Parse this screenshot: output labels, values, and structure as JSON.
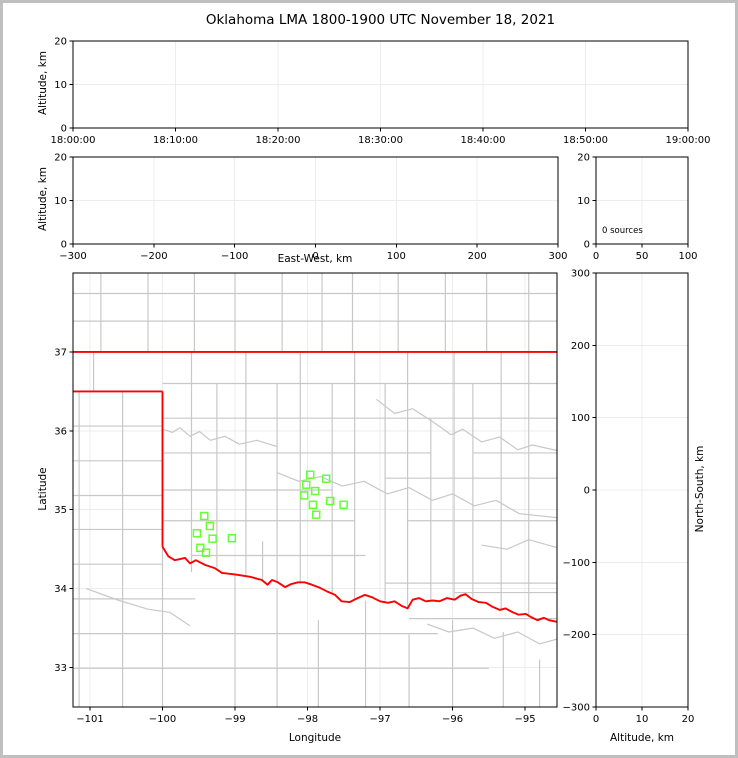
{
  "title": "Oklahoma LMA 1800-1900 UTC November 18, 2021",
  "colors": {
    "state_border": "#ff0000",
    "county_line": "#c8c8c8",
    "source_marker": "#66ff33",
    "gridline": "#ececec",
    "axis": "#000000",
    "frame_border": "#bfbfbf",
    "background": "#ffffff"
  },
  "panels": {
    "time_height": {
      "ylabel": "Altitude, km",
      "ylim": [
        0,
        20
      ],
      "xlim": [
        0,
        6
      ],
      "yticks": [
        [
          0,
          "0"
        ],
        [
          10,
          "10"
        ],
        [
          20,
          "20"
        ]
      ],
      "xticks": [
        [
          0,
          "18:00:00"
        ],
        [
          1,
          "18:10:00"
        ],
        [
          2,
          "18:20:00"
        ],
        [
          3,
          "18:30:00"
        ],
        [
          4,
          "18:40:00"
        ],
        [
          5,
          "18:50:00"
        ],
        [
          6,
          "19:00:00"
        ]
      ]
    },
    "ew_height": {
      "ylabel": "Altitude, km",
      "xlabel": "East-West, km",
      "ylim": [
        0,
        20
      ],
      "xlim": [
        -300,
        300
      ],
      "yticks": [
        [
          0,
          "0"
        ],
        [
          10,
          "10"
        ],
        [
          20,
          "20"
        ]
      ],
      "xticks": [
        [
          -300,
          "−300"
        ],
        [
          -200,
          "−200"
        ],
        [
          -100,
          "−100"
        ],
        [
          0,
          "0"
        ],
        [
          100,
          "100"
        ],
        [
          200,
          "200"
        ],
        [
          300,
          "300"
        ]
      ]
    },
    "histogram": {
      "annotation": "0 sources",
      "ylim": [
        0,
        20
      ],
      "xlim": [
        0,
        100
      ],
      "yticks": [
        [
          0,
          "0"
        ],
        [
          10,
          "10"
        ],
        [
          20,
          "20"
        ]
      ],
      "xticks": [
        [
          0,
          "0"
        ],
        [
          50,
          "50"
        ],
        [
          100,
          "100"
        ]
      ]
    },
    "map": {
      "ylabel": "Latitude",
      "xlabel": "Longitude",
      "ylim": [
        32.5,
        38.0
      ],
      "xlim": [
        -101.234,
        -94.56
      ],
      "yticks": [
        [
          33,
          "33"
        ],
        [
          34,
          "34"
        ],
        [
          35,
          "35"
        ],
        [
          36,
          "36"
        ],
        [
          37,
          "37"
        ]
      ],
      "xticks": [
        [
          -101,
          "−101"
        ],
        [
          -100,
          "−100"
        ],
        [
          -99,
          "−99"
        ],
        [
          -98,
          "−98"
        ],
        [
          -97,
          "−97"
        ],
        [
          -96,
          "−96"
        ],
        [
          -95,
          "−95"
        ]
      ]
    },
    "ns_height": {
      "ylabel": "North-South, km",
      "xlabel": "Altitude, km",
      "ylim": [
        -300,
        300
      ],
      "xlim": [
        0,
        20
      ],
      "yticks": [
        [
          -300,
          "−300"
        ],
        [
          -200,
          "−200"
        ],
        [
          -100,
          "−100"
        ],
        [
          0,
          "0"
        ],
        [
          100,
          "100"
        ],
        [
          200,
          "200"
        ],
        [
          300,
          "300"
        ]
      ],
      "xticks": [
        [
          0,
          "0"
        ],
        [
          10,
          "10"
        ],
        [
          20,
          "20"
        ]
      ]
    }
  },
  "chart_data": {
    "type": "scatter",
    "title": "Oklahoma LMA 1800-1900 UTC November 18, 2021",
    "source_count_label": "0 sources",
    "map_sources_lon_lat": [
      [
        -97.963,
        35.444
      ],
      [
        -97.742,
        35.393
      ],
      [
        -98.018,
        35.317
      ],
      [
        -97.894,
        35.237
      ],
      [
        -98.046,
        35.182
      ],
      [
        -97.687,
        35.11
      ],
      [
        -97.926,
        35.063
      ],
      [
        -97.503,
        35.063
      ],
      [
        -97.88,
        34.937
      ],
      [
        -99.424,
        34.92
      ],
      [
        -99.346,
        34.794
      ],
      [
        -99.525,
        34.701
      ],
      [
        -99.309,
        34.633
      ],
      [
        -99.043,
        34.638
      ],
      [
        -99.479,
        34.518
      ],
      [
        -99.4,
        34.455
      ]
    ],
    "state_border": {
      "north": [
        [
          -101.234,
          37.0
        ],
        [
          -94.56,
          37.0
        ]
      ],
      "panhandle_south": [
        [
          -101.234,
          36.5
        ],
        [
          -100.0,
          36.5
        ]
      ],
      "east_vertical": [
        [
          -100.0,
          36.5
        ],
        [
          -100.0,
          34.53
        ]
      ],
      "red_river": [
        [
          -100.0,
          34.53
        ],
        [
          -99.92,
          34.41
        ],
        [
          -99.83,
          34.36
        ],
        [
          -99.69,
          34.39
        ],
        [
          -99.62,
          34.32
        ],
        [
          -99.54,
          34.36
        ],
        [
          -99.41,
          34.3
        ],
        [
          -99.28,
          34.26
        ],
        [
          -99.18,
          34.2
        ],
        [
          -99.0,
          34.18
        ],
        [
          -98.79,
          34.15
        ],
        [
          -98.63,
          34.11
        ],
        [
          -98.55,
          34.05
        ],
        [
          -98.49,
          34.11
        ],
        [
          -98.41,
          34.08
        ],
        [
          -98.31,
          34.02
        ],
        [
          -98.22,
          34.06
        ],
        [
          -98.13,
          34.08
        ],
        [
          -98.04,
          34.08
        ],
        [
          -97.94,
          34.05
        ],
        [
          -97.83,
          34.01
        ],
        [
          -97.72,
          33.96
        ],
        [
          -97.62,
          33.92
        ],
        [
          -97.53,
          33.84
        ],
        [
          -97.42,
          33.83
        ],
        [
          -97.31,
          33.88
        ],
        [
          -97.21,
          33.92
        ],
        [
          -97.11,
          33.89
        ],
        [
          -97.0,
          33.84
        ],
        [
          -96.89,
          33.82
        ],
        [
          -96.8,
          33.84
        ],
        [
          -96.7,
          33.78
        ],
        [
          -96.62,
          33.75
        ],
        [
          -96.55,
          33.86
        ],
        [
          -96.46,
          33.88
        ],
        [
          -96.37,
          33.84
        ],
        [
          -96.27,
          33.85
        ],
        [
          -96.18,
          33.84
        ],
        [
          -96.08,
          33.88
        ],
        [
          -95.97,
          33.86
        ],
        [
          -95.89,
          33.91
        ],
        [
          -95.82,
          33.93
        ],
        [
          -95.74,
          33.87
        ],
        [
          -95.64,
          33.83
        ],
        [
          -95.54,
          33.82
        ],
        [
          -95.45,
          33.77
        ],
        [
          -95.35,
          33.73
        ],
        [
          -95.27,
          33.75
        ],
        [
          -95.17,
          33.7
        ],
        [
          -95.09,
          33.67
        ],
        [
          -94.99,
          33.68
        ],
        [
          -94.92,
          33.64
        ],
        [
          -94.83,
          33.6
        ],
        [
          -94.74,
          33.63
        ],
        [
          -94.67,
          33.6
        ],
        [
          -94.56,
          33.58
        ]
      ]
    },
    "counties": {
      "cols": [
        [
          -100.85,
          37.0,
          38.0
        ],
        [
          -100.2,
          37.0,
          38.0
        ],
        [
          -99.56,
          37.0,
          38.0
        ],
        [
          -99.0,
          37.0,
          38.0
        ],
        [
          -98.35,
          37.0,
          38.0
        ],
        [
          -97.8,
          37.0,
          38.0
        ],
        [
          -97.38,
          37.0,
          38.0
        ],
        [
          -96.75,
          37.0,
          38.0
        ],
        [
          -96.1,
          37.0,
          38.0
        ],
        [
          -95.53,
          37.0,
          38.0
        ],
        [
          -94.95,
          37.0,
          38.0
        ],
        [
          -100.95,
          36.5,
          37.0
        ],
        [
          -101.15,
          32.5,
          36.5
        ],
        [
          -100.55,
          32.5,
          36.5
        ],
        [
          -100.0,
          32.5,
          34.53
        ],
        [
          -99.6,
          34.21,
          37.0
        ],
        [
          -99.25,
          34.27,
          36.6
        ],
        [
          -98.85,
          34.16,
          37.0
        ],
        [
          -98.62,
          34.1,
          34.6
        ],
        [
          -98.42,
          34.08,
          36.6
        ],
        [
          -98.1,
          34.06,
          37.0
        ],
        [
          -97.66,
          33.95,
          36.6
        ],
        [
          -97.35,
          33.87,
          37.0
        ],
        [
          -96.93,
          33.82,
          36.6
        ],
        [
          -96.62,
          33.77,
          37.0
        ],
        [
          -96.3,
          33.84,
          36.16
        ],
        [
          -95.98,
          33.86,
          37.0
        ],
        [
          -95.72,
          33.88,
          36.6
        ],
        [
          -95.33,
          33.72,
          37.0
        ],
        [
          -94.95,
          33.64,
          37.0
        ],
        [
          -99.0,
          32.5,
          34.18
        ],
        [
          -98.42,
          32.5,
          34.0
        ],
        [
          -97.85,
          32.5,
          33.6
        ],
        [
          -97.2,
          32.5,
          33.85
        ],
        [
          -96.6,
          32.5,
          33.42
        ],
        [
          -96.0,
          32.5,
          33.6
        ],
        [
          -95.3,
          32.5,
          33.45
        ],
        [
          -94.8,
          32.5,
          33.1
        ]
      ],
      "rows": [
        [
          37.39,
          -101.234,
          -94.56
        ],
        [
          37.74,
          -101.234,
          -94.56
        ],
        [
          36.06,
          -101.234,
          -100.0
        ],
        [
          35.62,
          -101.234,
          -100.0
        ],
        [
          35.18,
          -101.234,
          -100.0
        ],
        [
          34.75,
          -101.234,
          -100.0
        ],
        [
          34.31,
          -101.234,
          -100.0
        ],
        [
          33.87,
          -101.234,
          -99.55
        ],
        [
          33.43,
          -101.234,
          -96.2
        ],
        [
          32.99,
          -101.234,
          -95.5
        ],
        [
          36.6,
          -100.0,
          -94.56
        ],
        [
          36.16,
          -100.0,
          -94.56
        ],
        [
          35.72,
          -100.0,
          -96.3
        ],
        [
          35.72,
          -95.72,
          -94.56
        ],
        [
          35.4,
          -96.93,
          -94.56
        ],
        [
          35.25,
          -100.0,
          -97.66
        ],
        [
          34.86,
          -100.0,
          -97.35
        ],
        [
          34.86,
          -96.62,
          -94.56
        ],
        [
          34.42,
          -99.6,
          -97.2
        ],
        [
          34.07,
          -96.93,
          -94.56
        ],
        [
          33.95,
          -95.98,
          -94.56
        ],
        [
          33.62,
          -96.6,
          -94.56
        ]
      ],
      "rivers": [
        [
          [
            -100.0,
            36.02
          ],
          [
            -99.86,
            35.98
          ],
          [
            -99.76,
            36.04
          ],
          [
            -99.62,
            35.93
          ],
          [
            -99.49,
            35.99
          ],
          [
            -99.34,
            35.88
          ],
          [
            -99.14,
            35.93
          ],
          [
            -98.94,
            35.83
          ],
          [
            -98.7,
            35.88
          ],
          [
            -98.42,
            35.8
          ]
        ],
        [
          [
            -97.05,
            36.4
          ],
          [
            -96.8,
            36.22
          ],
          [
            -96.55,
            36.28
          ],
          [
            -96.25,
            36.1
          ],
          [
            -96.02,
            35.95
          ],
          [
            -95.86,
            36.02
          ],
          [
            -95.6,
            35.86
          ],
          [
            -95.35,
            35.92
          ],
          [
            -95.1,
            35.76
          ],
          [
            -94.9,
            35.82
          ],
          [
            -94.56,
            35.75
          ]
        ],
        [
          [
            -98.42,
            35.47
          ],
          [
            -98.12,
            35.36
          ],
          [
            -97.82,
            35.42
          ],
          [
            -97.52,
            35.3
          ],
          [
            -97.22,
            35.36
          ],
          [
            -96.9,
            35.2
          ],
          [
            -96.6,
            35.28
          ],
          [
            -96.28,
            35.12
          ],
          [
            -96.0,
            35.2
          ],
          [
            -95.7,
            35.05
          ],
          [
            -95.4,
            35.12
          ],
          [
            -95.08,
            34.95
          ],
          [
            -94.56,
            34.9
          ]
        ],
        [
          [
            -96.35,
            33.55
          ],
          [
            -96.05,
            33.45
          ],
          [
            -95.72,
            33.5
          ],
          [
            -95.42,
            33.37
          ],
          [
            -95.1,
            33.45
          ],
          [
            -94.8,
            33.3
          ],
          [
            -94.56,
            33.36
          ]
        ],
        [
          [
            -101.05,
            34.0
          ],
          [
            -100.6,
            33.85
          ],
          [
            -100.2,
            33.74
          ],
          [
            -99.9,
            33.7
          ],
          [
            -99.62,
            33.53
          ]
        ],
        [
          [
            -95.6,
            34.55
          ],
          [
            -95.25,
            34.5
          ],
          [
            -94.95,
            34.62
          ],
          [
            -94.56,
            34.52
          ]
        ]
      ]
    }
  }
}
